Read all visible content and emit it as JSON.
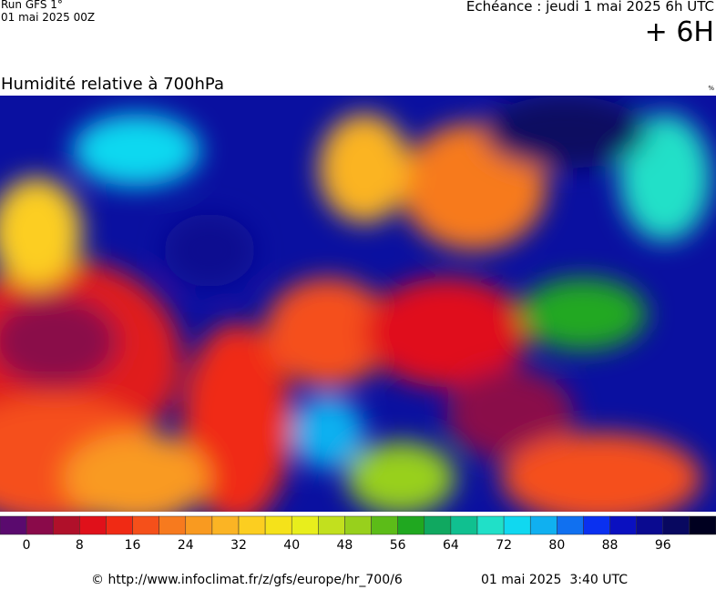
{
  "header": {
    "run": "Run GFS 1°",
    "run_date": "01 mai 2025 00Z",
    "forecast": "Echéance : jeudi 1 mai 2025 6h UTC",
    "lead": "+ 6H"
  },
  "map": {
    "title": "Humidité relative à 700hPa",
    "unit": "%"
  },
  "legend": {
    "colors": [
      "#5a0a6e",
      "#8a0a4a",
      "#b0102a",
      "#e0101a",
      "#f02a14",
      "#f5501a",
      "#f77a1e",
      "#f99a20",
      "#fbb424",
      "#fcce20",
      "#f5e21a",
      "#e8ee1c",
      "#c2e01e",
      "#98d01c",
      "#5cbc18",
      "#20a820",
      "#10a860",
      "#10c090",
      "#20e0c8",
      "#10d8f0",
      "#10b0f0",
      "#1070f0",
      "#0a30f0",
      "#0a10c0",
      "#0a0a90",
      "#080860",
      "#000020"
    ],
    "ticks": [
      0,
      8,
      16,
      24,
      32,
      40,
      48,
      56,
      64,
      72,
      80,
      88,
      96
    ]
  },
  "footer": {
    "source": "© http://www.infoclimat.fr/z/gfs/europe/hr_700/6",
    "generated": "01 mai 2025  3:40 UTC"
  }
}
